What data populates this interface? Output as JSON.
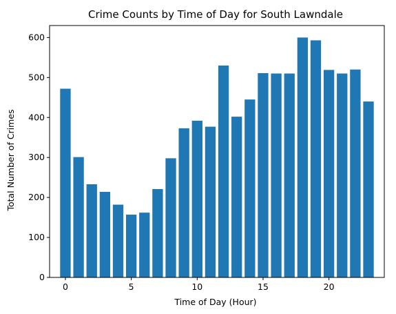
{
  "chart_data": {
    "type": "bar",
    "title": "Crime Counts by Time of Day for South Lawndale",
    "xlabel": "Time of Day (Hour)",
    "ylabel": "Total Number of Crimes",
    "x": [
      0,
      1,
      2,
      3,
      4,
      5,
      6,
      7,
      8,
      9,
      10,
      11,
      12,
      13,
      14,
      15,
      16,
      17,
      18,
      19,
      20,
      21,
      22,
      23
    ],
    "values": [
      472,
      301,
      233,
      214,
      182,
      157,
      162,
      221,
      298,
      373,
      392,
      377,
      530,
      402,
      445,
      511,
      510,
      510,
      600,
      593,
      519,
      510,
      520,
      440
    ],
    "xlim": [
      -1.2,
      24.2
    ],
    "ylim": [
      0,
      630
    ],
    "xticks": [
      0,
      5,
      10,
      15,
      20
    ],
    "yticks": [
      0,
      100,
      200,
      300,
      400,
      500,
      600
    ],
    "bar_color": "#1f77b4",
    "grid": false,
    "legend": "none"
  }
}
